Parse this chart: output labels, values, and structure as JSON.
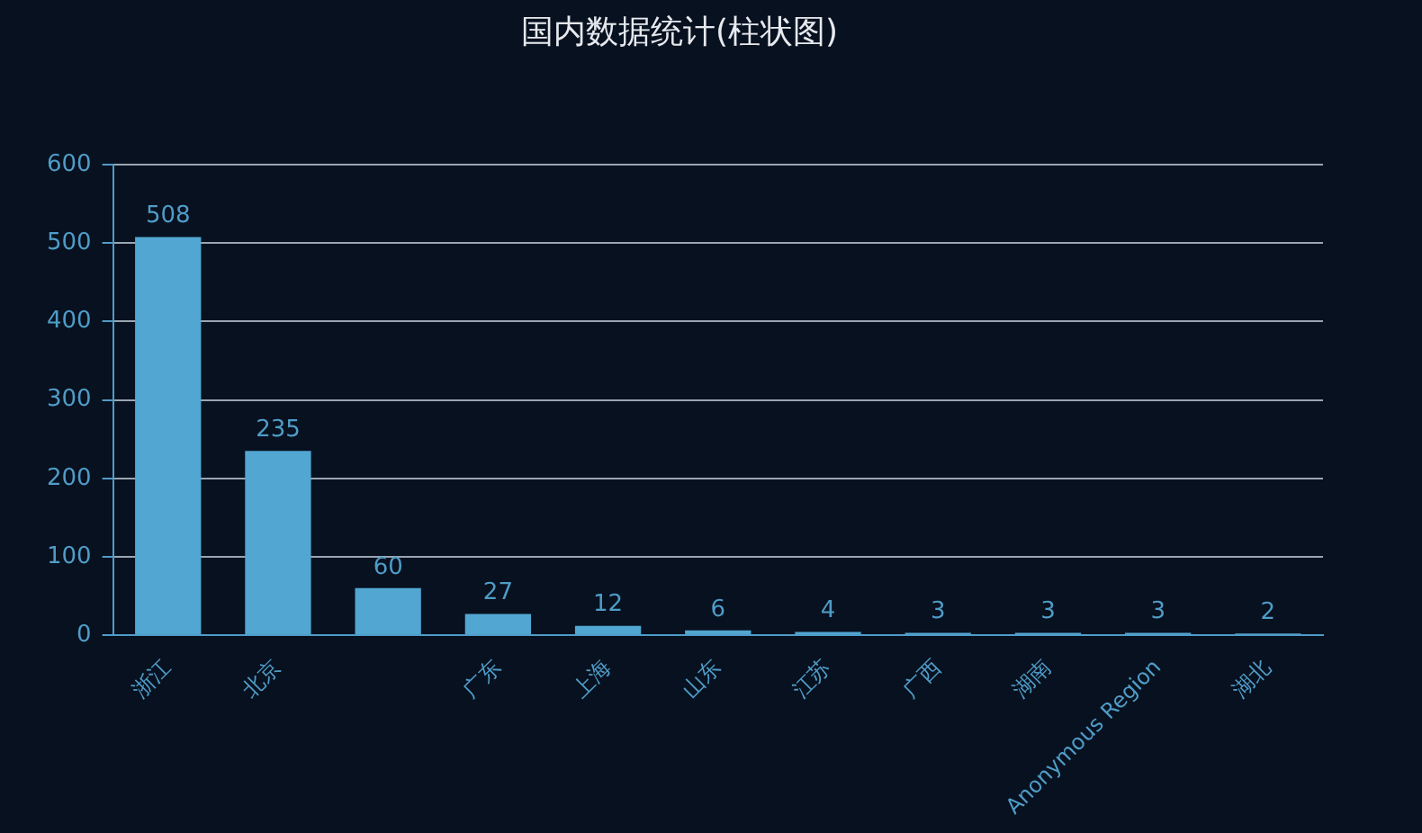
{
  "chart_data": {
    "type": "bar",
    "title": "国内数据统计(柱状图)",
    "categories": [
      "浙江",
      "北京",
      null,
      "广东",
      "上海",
      "山东",
      "江苏",
      "广西",
      "湖南",
      "Anonymous Region",
      "湖北"
    ],
    "values": [
      508,
      235,
      60,
      27,
      12,
      6,
      4,
      3,
      3,
      3,
      2
    ],
    "color": "#52a6d2",
    "ylim": [
      0,
      600
    ],
    "yticks": [
      0,
      100,
      200,
      300,
      400,
      500,
      600
    ],
    "grid": "y",
    "legend": false,
    "data_labels": true
  }
}
